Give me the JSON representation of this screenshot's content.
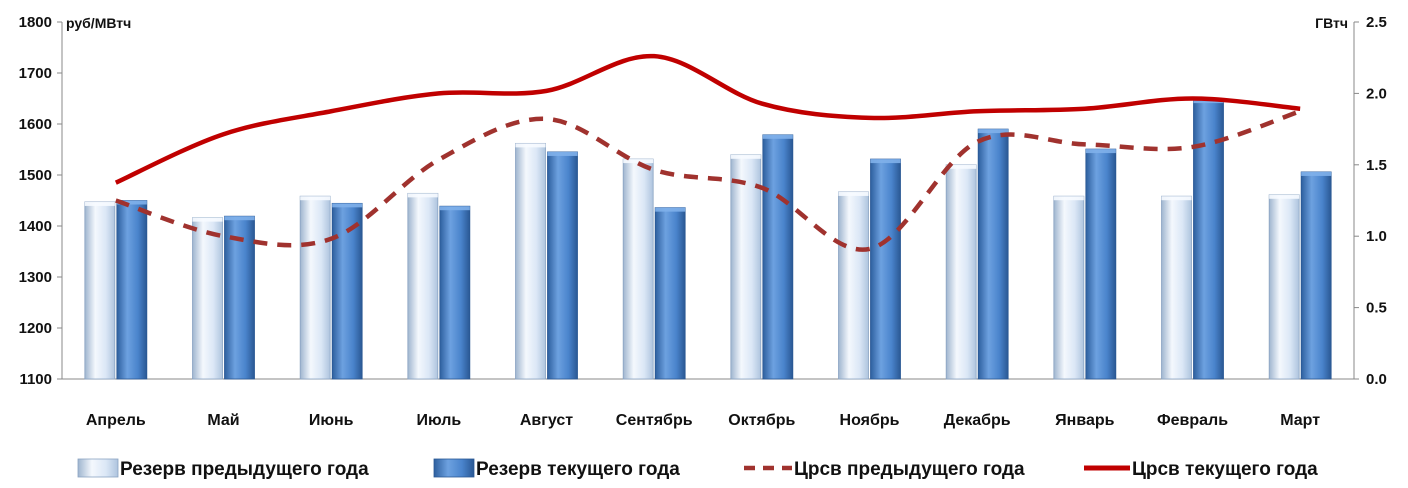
{
  "chart_data": {
    "type": "bar",
    "y_left_unit": "руб/МВтч",
    "y_right_unit": "ГВтч",
    "y_left_ticks": [
      "1100",
      "1200",
      "1300",
      "1400",
      "1500",
      "1600",
      "1700",
      "1800"
    ],
    "y_right_ticks": [
      "0.0",
      "0.5",
      "1.0",
      "1.5",
      "2.0",
      "2.5"
    ],
    "ylim_left": [
      1100,
      1800
    ],
    "ylim_right": [
      0,
      2.5
    ],
    "categories": [
      "Апрель",
      "Май",
      "Июнь",
      "Июль",
      "Август",
      "Сентябрь",
      "Октябрь",
      "Ноябрь",
      "Декабрь",
      "Январь",
      "Февраль",
      "Март"
    ],
    "series": [
      {
        "name": "Резерв предыдущего года",
        "kind": "bar",
        "axis": "right",
        "color": "#dce8f7",
        "values": [
          1.24,
          1.13,
          1.28,
          1.3,
          1.65,
          1.54,
          1.57,
          1.31,
          1.5,
          1.28,
          1.28,
          1.29
        ]
      },
      {
        "name": "Резерв текущего года",
        "kind": "bar",
        "axis": "right",
        "color": "#4a84cc",
        "values": [
          1.25,
          1.14,
          1.23,
          1.21,
          1.59,
          1.2,
          1.71,
          1.54,
          1.75,
          1.61,
          1.96,
          1.45
        ]
      },
      {
        "name": "Црсв предыдущего года",
        "kind": "line",
        "style": "dashed",
        "axis": "left",
        "color": "#a0322e",
        "values": [
          1450,
          1380,
          1375,
          1530,
          1610,
          1510,
          1475,
          1355,
          1565,
          1560,
          1555,
          1625
        ]
      },
      {
        "name": "Црсв текущего года",
        "kind": "line",
        "style": "solid",
        "axis": "left",
        "color": "#c00000",
        "values": [
          1485,
          1580,
          1625,
          1660,
          1665,
          1733,
          1640,
          1612,
          1625,
          1630,
          1650,
          1630
        ]
      }
    ],
    "grid": false,
    "legend_position": "bottom"
  }
}
